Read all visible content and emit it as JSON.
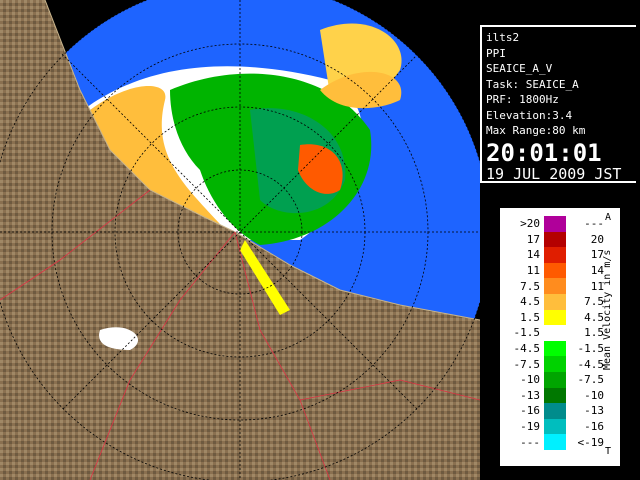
{
  "info": {
    "site": "ilts2",
    "mode": "PPI",
    "product": "SEAICE_A_V",
    "task": "Task: SEAICE_A",
    "prf": "PRF: 1800Hz",
    "elevation": "Elevation:3.4",
    "max_range": "Max Range:80 km",
    "time": "20:01:01",
    "date": "19 JUL 2009 JST"
  },
  "legend": {
    "top_label": "A",
    "axis_label": "Mean Velocity in m/s",
    "bottom_label": "T",
    "rows": [
      {
        "low": ">20",
        "high": "---",
        "color": "#b0009a"
      },
      {
        "low": "17",
        "high": "20",
        "color": "#b40000"
      },
      {
        "low": "14",
        "high": "17",
        "color": "#e01e00"
      },
      {
        "low": "11",
        "high": "14",
        "color": "#ff5a00"
      },
      {
        "low": "7.5",
        "high": "11",
        "color": "#ff8c1e"
      },
      {
        "low": "4.5",
        "high": "7.5",
        "color": "#ffbe3c"
      },
      {
        "low": "1.5",
        "high": "4.5",
        "color": "#ffff00"
      },
      {
        "low": "-1.5",
        "high": "1.5",
        "color": "#ffffff"
      },
      {
        "low": "-4.5",
        "high": "-1.5",
        "color": "#00ff00"
      },
      {
        "low": "-7.5",
        "high": "-4.5",
        "color": "#00d200"
      },
      {
        "low": "-10",
        "high": "-7.5",
        "color": "#00a500"
      },
      {
        "low": "-13",
        "high": "-10",
        "color": "#007800"
      },
      {
        "low": "-16",
        "high": "-13",
        "color": "#008c8c"
      },
      {
        "low": "-19",
        "high": "-16",
        "color": "#00bebe"
      },
      {
        "low": "---",
        "high": "<-19",
        "color": "#00f0ff"
      }
    ]
  }
}
